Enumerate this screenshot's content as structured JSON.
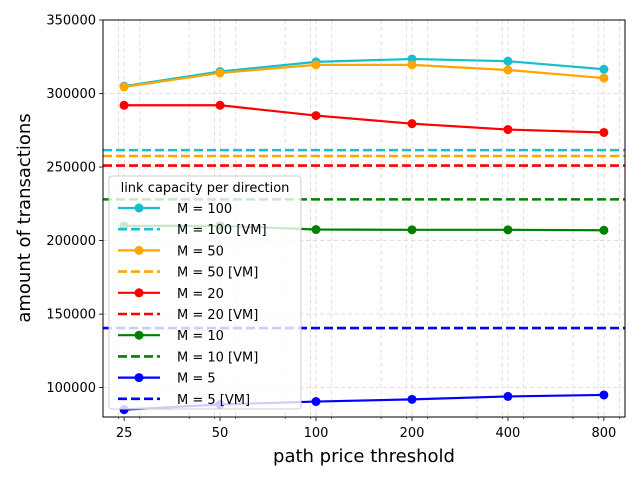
{
  "chart_data": {
    "type": "line",
    "xlabel": "path price threshold",
    "ylabel": "amount of transactions",
    "x_scale": "log2",
    "x": [
      25,
      50,
      100,
      200,
      400,
      800
    ],
    "x_ticks": [
      "25",
      "50",
      "100",
      "200",
      "400",
      "800"
    ],
    "ylim": [
      80000,
      350000
    ],
    "y_ticks": [
      "100000",
      "150000",
      "200000",
      "250000",
      "300000",
      "350000"
    ],
    "grid": true,
    "legend": {
      "title": "link capacity per direction",
      "placement": "center-left"
    },
    "series": [
      {
        "name": "M = 100",
        "color": "#17becf",
        "style": "solid-marker",
        "values": [
          305000,
          315000,
          321500,
          323500,
          322000,
          316500
        ]
      },
      {
        "name": "M = 100 [VM]",
        "color": "#17becf",
        "style": "dashed",
        "value": 261500
      },
      {
        "name": "M = 50",
        "color": "#ffa500",
        "style": "solid-marker",
        "values": [
          304500,
          314000,
          319500,
          319500,
          316000,
          310500
        ]
      },
      {
        "name": "M = 50 [VM]",
        "color": "#ffa500",
        "style": "dashed",
        "value": 257500
      },
      {
        "name": "M = 20",
        "color": "#ff0000",
        "style": "solid-marker",
        "values": [
          292000,
          292000,
          285000,
          279500,
          275500,
          273500
        ]
      },
      {
        "name": "M = 20 [VM]",
        "color": "#ff0000",
        "style": "dashed",
        "value": 251000
      },
      {
        "name": "M = 10",
        "color": "#008000",
        "style": "solid-marker",
        "values": [
          210000,
          210000,
          207500,
          207300,
          207300,
          207000
        ]
      },
      {
        "name": "M = 10 [VM]",
        "color": "#008000",
        "style": "dashed",
        "value": 228000
      },
      {
        "name": "M = 5",
        "color": "#0000ff",
        "style": "solid-marker",
        "values": [
          85000,
          88500,
          90500,
          92000,
          94000,
          95000
        ]
      },
      {
        "name": "M = 5 [VM]",
        "color": "#0000ff",
        "style": "dashed",
        "value": 140500
      }
    ]
  }
}
